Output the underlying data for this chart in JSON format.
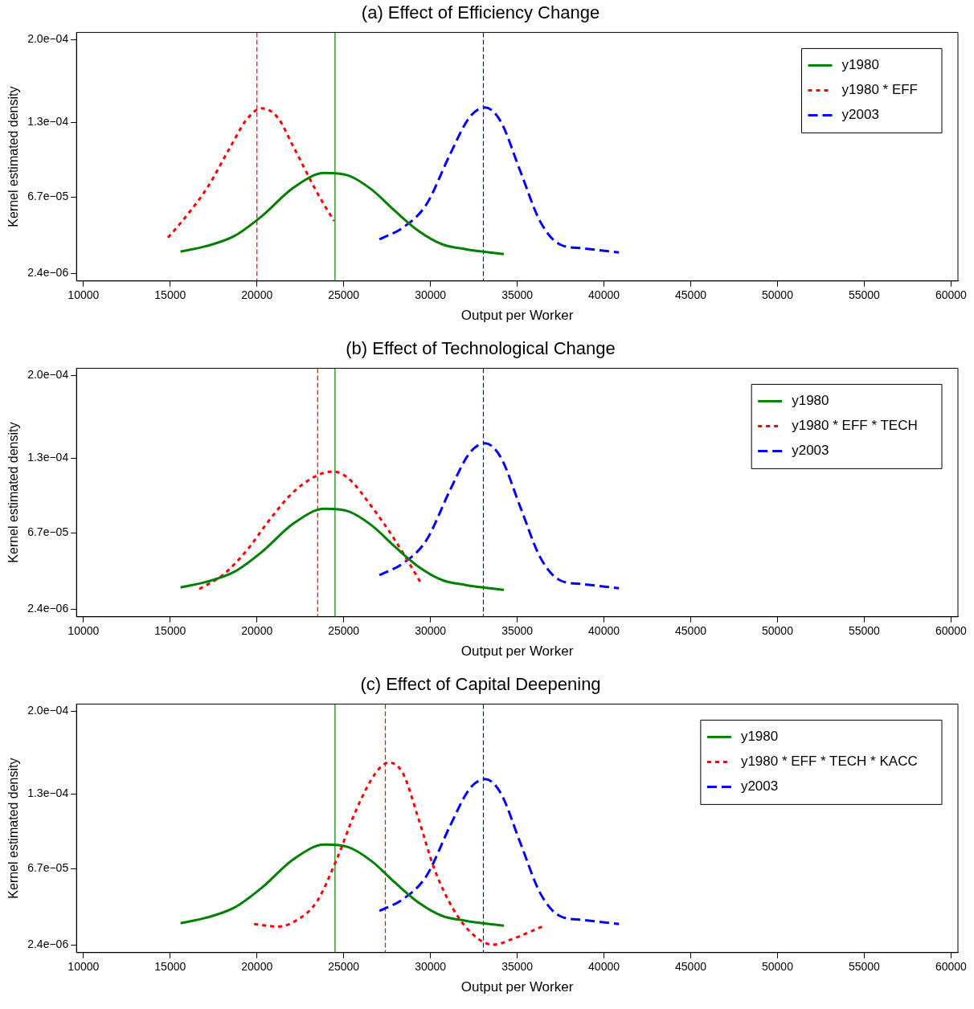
{
  "chart_data": [
    {
      "type": "line",
      "title": "(a) Effect of Efficiency Change",
      "xlabel": "Output per Worker",
      "ylabel": "Kernel estimated density",
      "xlim": [
        9600,
        60400
      ],
      "xticks": [
        10000,
        15000,
        20000,
        25000,
        30000,
        35000,
        40000,
        45000,
        50000,
        55000,
        60000
      ],
      "ylim": [
        -4e-06,
        0.000206
      ],
      "yticks": [
        {
          "value": 2.4e-06,
          "label": "2.4e−06"
        },
        {
          "value": 6.7e-05,
          "label": "6.7e−05"
        },
        {
          "value": 0.00013,
          "label": "1.3e−04"
        },
        {
          "value": 0.0002,
          "label": "2.0e−04"
        }
      ],
      "grid": false,
      "legend": "top right",
      "marker": "none",
      "series": [
        {
          "name": "y1980",
          "color": "#008000",
          "line_style": "solid",
          "x": [
            15596,
            17130,
            18709,
            20289,
            22094,
            23899,
            25253,
            26606,
            27960,
            29314,
            30668,
            32022,
            34233
          ],
          "values": [
            2.08e-05,
            2.57e-05,
            3.41e-05,
            5.09e-05,
            7.47e-05,
            8.73e-05,
            8.52e-05,
            7.33e-05,
            5.51e-05,
            3.83e-05,
            2.71e-05,
            2.29e-05,
            1.87e-05
          ]
        },
        {
          "name": "y1980 * EFF",
          "color": "#ff0000",
          "line_style": "dotted",
          "x": [
            14874,
            15776,
            17130,
            18484,
            19386,
            20289,
            21191,
            22094,
            23448,
            24440
          ],
          "values": [
            3.27e-05,
            4.81e-05,
            7.47e-05,
            0.0001097,
            0.0001321,
            0.0001419,
            0.0001342,
            0.0001097,
            7.12e-05,
            4.67e-05
          ]
        },
        {
          "name": "y2003",
          "color": "#0000ff",
          "line_style": "dashed",
          "x": [
            27058,
            28412,
            29765,
            31119,
            32247,
            33150,
            34052,
            35181,
            36309,
            37437,
            38791,
            40866
          ],
          "values": [
            3.13e-05,
            4.11e-05,
            6.07e-05,
            0.0001027,
            0.0001342,
            0.0001426,
            0.0001307,
            8.87e-05,
            4.67e-05,
            2.71e-05,
            2.36e-05,
            2.01e-05
          ]
        }
      ],
      "ref_lines": [
        {
          "axis": "x",
          "value": 20000,
          "color": "#ff0000",
          "line_style": "dashed"
        },
        {
          "axis": "x",
          "value": 24500,
          "color": "#008000",
          "line_style": "solid"
        },
        {
          "axis": "x",
          "value": 33050,
          "color": "#0000ff",
          "line_style": "dashed"
        }
      ]
    },
    {
      "type": "line",
      "title": "(b) Effect of Technological Change",
      "xlabel": "Output per Worker",
      "ylabel": "Kernel estimated density",
      "xlim": [
        9600,
        60400
      ],
      "xticks": [
        10000,
        15000,
        20000,
        25000,
        30000,
        35000,
        40000,
        45000,
        50000,
        55000,
        60000
      ],
      "ylim": [
        -4e-06,
        0.000206
      ],
      "yticks": [
        {
          "value": 2.4e-06,
          "label": "2.4e−06"
        },
        {
          "value": 6.7e-05,
          "label": "6.7e−05"
        },
        {
          "value": 0.00013,
          "label": "1.3e−04"
        },
        {
          "value": 0.0002,
          "label": "2.0e−04"
        }
      ],
      "grid": false,
      "legend": "top right",
      "marker": "none",
      "series": [
        {
          "name": "y1980",
          "color": "#008000",
          "line_style": "solid",
          "x": [
            15596,
            17130,
            18709,
            20289,
            22094,
            23899,
            25253,
            26606,
            27960,
            29314,
            30668,
            32022,
            34233
          ],
          "values": [
            2.08e-05,
            2.57e-05,
            3.41e-05,
            5.09e-05,
            7.47e-05,
            8.73e-05,
            8.52e-05,
            7.33e-05,
            5.51e-05,
            3.83e-05,
            2.71e-05,
            2.29e-05,
            1.87e-05
          ]
        },
        {
          "name": "y1980 * EFF * TECH",
          "color": "#ff0000",
          "line_style": "dotted",
          "x": [
            16679,
            18032,
            19386,
            20740,
            22094,
            23448,
            24350,
            25253,
            26606,
            27960,
            29404
          ],
          "values": [
            1.94e-05,
            3.13e-05,
            5.16e-05,
            7.82e-05,
            0.0001013,
            0.0001153,
            0.0001188,
            0.0001132,
            8.92e-05,
            6.07e-05,
            2.57e-05
          ]
        },
        {
          "name": "y2003",
          "color": "#0000ff",
          "line_style": "dashed",
          "x": [
            27058,
            28412,
            29765,
            31119,
            32247,
            33150,
            34052,
            35181,
            36309,
            37437,
            38791,
            40866
          ],
          "values": [
            3.13e-05,
            4.11e-05,
            6.07e-05,
            0.0001027,
            0.0001342,
            0.0001426,
            0.0001307,
            8.87e-05,
            4.67e-05,
            2.71e-05,
            2.36e-05,
            2.01e-05
          ]
        }
      ],
      "ref_lines": [
        {
          "axis": "x",
          "value": 23500,
          "color": "#ff0000",
          "line_style": "dashed"
        },
        {
          "axis": "x",
          "value": 24500,
          "color": "#008000",
          "line_style": "solid"
        },
        {
          "axis": "x",
          "value": 33050,
          "color": "#0000ff",
          "line_style": "dashed"
        }
      ]
    },
    {
      "type": "line",
      "title": "(c) Effect of Capital Deepening",
      "xlabel": "Output per Worker",
      "ylabel": "Kernel estimated density",
      "xlim": [
        9600,
        60400
      ],
      "xticks": [
        10000,
        15000,
        20000,
        25000,
        30000,
        35000,
        40000,
        45000,
        50000,
        55000,
        60000
      ],
      "ylim": [
        -4e-06,
        0.000206
      ],
      "yticks": [
        {
          "value": 2.4e-06,
          "label": "2.4e−06"
        },
        {
          "value": 6.7e-05,
          "label": "6.7e−05"
        },
        {
          "value": 0.00013,
          "label": "1.3e−04"
        },
        {
          "value": 0.0002,
          "label": "2.0e−04"
        }
      ],
      "grid": false,
      "legend": "top right",
      "marker": "none",
      "series": [
        {
          "name": "y1980",
          "color": "#008000",
          "line_style": "solid",
          "x": [
            15596,
            17130,
            18709,
            20289,
            22094,
            23899,
            25253,
            26606,
            27960,
            29314,
            30668,
            32022,
            34233
          ],
          "values": [
            2.08e-05,
            2.57e-05,
            3.41e-05,
            5.09e-05,
            7.47e-05,
            8.73e-05,
            8.52e-05,
            7.33e-05,
            5.51e-05,
            3.83e-05,
            2.71e-05,
            2.29e-05,
            1.87e-05
          ]
        },
        {
          "name": "y1980 * EFF * TECH * KACC",
          "color": "#ff0000",
          "line_style": "dotted",
          "x": [
            19838,
            21191,
            22320,
            23448,
            24576,
            25704,
            26832,
            27599,
            28412,
            29314,
            30217,
            31345,
            32473,
            33601,
            34729,
            36444
          ],
          "values": [
            2.01e-05,
            1.8e-05,
            2.36e-05,
            3.9e-05,
            7.4e-05,
            0.000116,
            0.0001475,
            0.0001566,
            0.0001475,
            0.000109,
            6.7e-05,
            3.2e-05,
            1.1e-05,
            2.6e-06,
            7.5e-06,
            1.8e-05
          ]
        },
        {
          "name": "y2003",
          "color": "#0000ff",
          "line_style": "dashed",
          "x": [
            27058,
            28412,
            29765,
            31119,
            32247,
            33150,
            34052,
            35181,
            36309,
            37437,
            38791,
            40866
          ],
          "values": [
            3.13e-05,
            4.11e-05,
            6.07e-05,
            0.0001027,
            0.0001342,
            0.0001426,
            0.0001307,
            8.87e-05,
            4.67e-05,
            2.71e-05,
            2.36e-05,
            2.01e-05
          ]
        }
      ],
      "ref_lines": [
        {
          "axis": "x",
          "value": 27400,
          "color": "#ff0000",
          "line_style": "dashed"
        },
        {
          "axis": "x",
          "value": 24500,
          "color": "#008000",
          "line_style": "solid"
        },
        {
          "axis": "x",
          "value": 33050,
          "color": "#0000ff",
          "line_style": "dashed"
        }
      ]
    }
  ]
}
